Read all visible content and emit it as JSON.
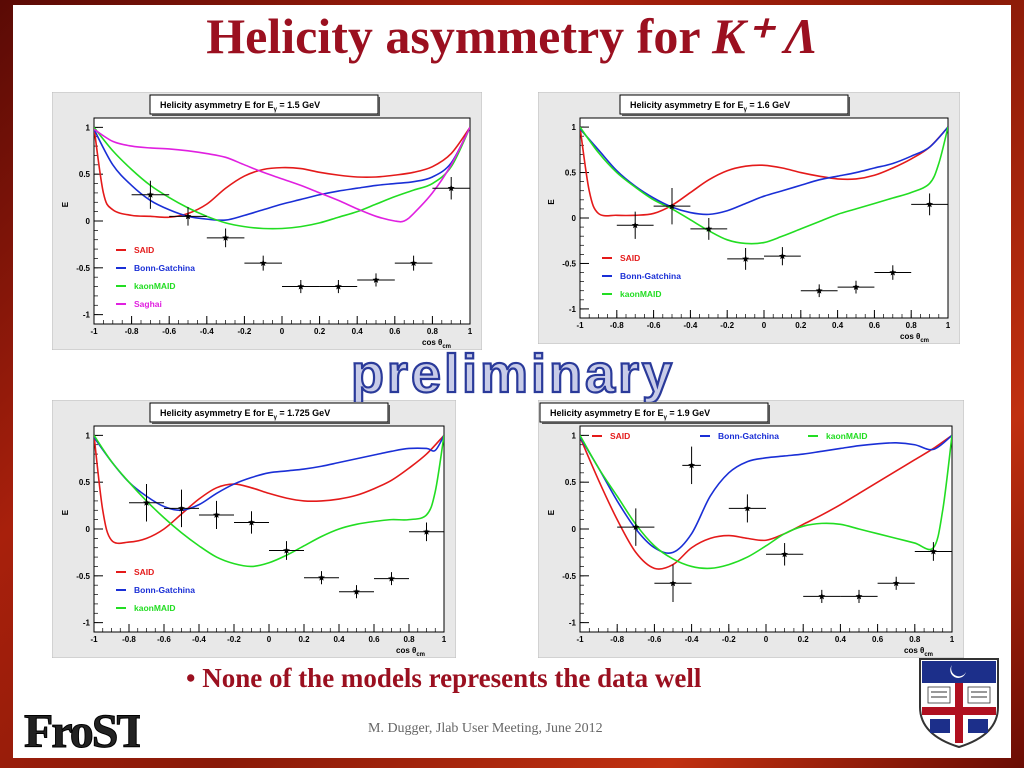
{
  "slide": {
    "title_prefix": "Helicity asymmetry for ",
    "title_particles": "K⁺ Λ",
    "watermark": "preliminary",
    "bullet": "• None of the models represents the data well",
    "footer": "M. Dugger, Jlab User Meeting, June 2012",
    "logo": "FroST"
  },
  "colors": {
    "SAID": "#e41a1a",
    "Bonn-Gatchina": "#1a2fd6",
    "kaonMAID": "#22dd22",
    "Saghai": "#e020e0",
    "title": "#9b1020"
  },
  "chart_data": [
    {
      "type": "line",
      "title": "Helicity asymmetry E   for E",
      "title_sub": "γ",
      "title_suffix": " = 1.5 GeV",
      "xlabel": "cos θ",
      "xlabel_sub": "cm",
      "ylabel": "E",
      "xlim": [
        -1,
        1
      ],
      "ylim": [
        -1.1,
        1.1
      ],
      "xticks": [
        "-1",
        "-0.8",
        "-0.6",
        "-0.4",
        "-0.2",
        "0",
        "0.2",
        "0.4",
        "0.6",
        "0.8",
        "1"
      ],
      "yticks": [
        "-1",
        "-0.5",
        "0",
        "0.5",
        "1"
      ],
      "legend_position": "bottom-left",
      "series": [
        {
          "name": "SAID",
          "color": "#e41a1a",
          "x": [
            -1,
            -0.95,
            -0.9,
            -0.8,
            -0.7,
            -0.6,
            -0.5,
            -0.4,
            -0.3,
            -0.2,
            -0.1,
            0,
            0.1,
            0.2,
            0.3,
            0.4,
            0.5,
            0.6,
            0.7,
            0.8,
            0.9,
            1
          ],
          "y": [
            1,
            0.3,
            0.12,
            0.06,
            0.05,
            0.04,
            0.08,
            0.18,
            0.35,
            0.48,
            0.55,
            0.57,
            0.56,
            0.52,
            0.49,
            0.47,
            0.47,
            0.49,
            0.52,
            0.58,
            0.72,
            1
          ]
        },
        {
          "name": "Bonn-Gatchina",
          "color": "#1a2fd6",
          "x": [
            -1,
            -0.9,
            -0.8,
            -0.7,
            -0.6,
            -0.5,
            -0.4,
            -0.3,
            -0.2,
            -0.1,
            0,
            0.1,
            0.2,
            0.3,
            0.4,
            0.5,
            0.6,
            0.7,
            0.8,
            0.9,
            1
          ],
          "y": [
            0.98,
            0.6,
            0.38,
            0.22,
            0.12,
            0.05,
            0.02,
            0.01,
            0.06,
            0.12,
            0.18,
            0.23,
            0.28,
            0.32,
            0.35,
            0.38,
            0.4,
            0.42,
            0.47,
            0.62,
            1
          ]
        },
        {
          "name": "kaonMAID",
          "color": "#22dd22",
          "x": [
            -1,
            -0.9,
            -0.8,
            -0.7,
            -0.6,
            -0.5,
            -0.4,
            -0.3,
            -0.2,
            -0.1,
            0,
            0.1,
            0.2,
            0.3,
            0.4,
            0.5,
            0.6,
            0.7,
            0.8,
            0.9,
            1
          ],
          "y": [
            1,
            0.75,
            0.55,
            0.38,
            0.25,
            0.14,
            0.05,
            -0.02,
            -0.06,
            -0.08,
            -0.08,
            -0.06,
            -0.02,
            0.04,
            0.1,
            0.18,
            0.26,
            0.33,
            0.4,
            0.58,
            1
          ]
        },
        {
          "name": "Saghai",
          "color": "#e020e0",
          "x": [
            -1,
            -0.9,
            -0.8,
            -0.7,
            -0.6,
            -0.5,
            -0.4,
            -0.3,
            -0.2,
            -0.1,
            0,
            0.1,
            0.2,
            0.3,
            0.4,
            0.5,
            0.6,
            0.65,
            0.7,
            0.8,
            0.9,
            1
          ],
          "y": [
            0.98,
            0.85,
            0.8,
            0.78,
            0.77,
            0.75,
            0.72,
            0.68,
            0.6,
            0.52,
            0.45,
            0.38,
            0.3,
            0.22,
            0.13,
            0.05,
            0.0,
            0.0,
            0.08,
            0.3,
            0.6,
            1
          ]
        }
      ],
      "data_points": {
        "x": [
          -0.7,
          -0.5,
          -0.3,
          -0.1,
          0.1,
          0.3,
          0.5,
          0.7,
          0.9
        ],
        "y": [
          0.28,
          0.05,
          -0.18,
          -0.45,
          -0.7,
          -0.7,
          -0.63,
          -0.45,
          0.35
        ],
        "xerr": [
          0.1,
          0.1,
          0.1,
          0.1,
          0.1,
          0.1,
          0.1,
          0.1,
          0.1
        ],
        "yerr": [
          0.15,
          0.1,
          0.1,
          0.08,
          0.07,
          0.07,
          0.07,
          0.08,
          0.12
        ]
      }
    },
    {
      "type": "line",
      "title": "Helicity asymmetry E  for E",
      "title_sub": "γ",
      "title_suffix": " = 1.6 GeV",
      "xlabel": "cos θ",
      "xlabel_sub": "cm",
      "ylabel": "E",
      "xlim": [
        -1,
        1
      ],
      "ylim": [
        -1.1,
        1.1
      ],
      "xticks": [
        "-1",
        "-0.8",
        "-0.6",
        "-0.4",
        "-0.2",
        "0",
        "0.2",
        "0.4",
        "0.6",
        "0.8",
        "1"
      ],
      "yticks": [
        "-1",
        "-0.5",
        "0",
        "0.5",
        "1"
      ],
      "legend_position": "bottom-left",
      "series": [
        {
          "name": "SAID",
          "color": "#e41a1a",
          "x": [
            -1,
            -0.95,
            -0.9,
            -0.8,
            -0.7,
            -0.6,
            -0.5,
            -0.4,
            -0.3,
            -0.2,
            -0.1,
            0,
            0.1,
            0.2,
            0.3,
            0.4,
            0.5,
            0.6,
            0.7,
            0.8,
            0.9,
            1
          ],
          "y": [
            1,
            0.3,
            0.05,
            0.03,
            0.03,
            0.05,
            0.14,
            0.28,
            0.42,
            0.52,
            0.57,
            0.58,
            0.55,
            0.5,
            0.46,
            0.43,
            0.43,
            0.47,
            0.55,
            0.65,
            0.78,
            1
          ]
        },
        {
          "name": "Bonn-Gatchina",
          "color": "#1a2fd6",
          "x": [
            -1,
            -0.9,
            -0.8,
            -0.7,
            -0.6,
            -0.5,
            -0.4,
            -0.3,
            -0.2,
            -0.1,
            0,
            0.1,
            0.2,
            0.3,
            0.4,
            0.5,
            0.6,
            0.7,
            0.8,
            0.9,
            1
          ],
          "y": [
            0.98,
            0.75,
            0.52,
            0.35,
            0.22,
            0.12,
            0.06,
            0.04,
            0.08,
            0.16,
            0.24,
            0.3,
            0.36,
            0.42,
            0.46,
            0.5,
            0.55,
            0.6,
            0.68,
            0.78,
            1
          ]
        },
        {
          "name": "kaonMAID",
          "color": "#22dd22",
          "x": [
            -1,
            -0.9,
            -0.8,
            -0.7,
            -0.6,
            -0.5,
            -0.4,
            -0.3,
            -0.2,
            -0.1,
            0,
            0.1,
            0.2,
            0.3,
            0.4,
            0.5,
            0.6,
            0.7,
            0.8,
            0.9,
            0.95,
            1
          ],
          "y": [
            1,
            0.72,
            0.5,
            0.34,
            0.2,
            0.1,
            -0.02,
            -0.14,
            -0.24,
            -0.28,
            -0.27,
            -0.2,
            -0.12,
            -0.04,
            0.04,
            0.1,
            0.16,
            0.22,
            0.28,
            0.38,
            0.6,
            1
          ]
        }
      ],
      "data_points": {
        "x": [
          -0.7,
          -0.5,
          -0.3,
          -0.1,
          0.1,
          0.3,
          0.5,
          0.7,
          0.9
        ],
        "y": [
          -0.08,
          0.13,
          -0.12,
          -0.45,
          -0.42,
          -0.8,
          -0.76,
          -0.6,
          0.15
        ],
        "xerr": [
          0.1,
          0.1,
          0.1,
          0.1,
          0.1,
          0.1,
          0.1,
          0.1,
          0.1
        ],
        "yerr": [
          0.15,
          0.2,
          0.12,
          0.12,
          0.1,
          0.07,
          0.07,
          0.08,
          0.12
        ]
      }
    },
    {
      "type": "line",
      "title": "Helicity asymmetry E  for E",
      "title_sub": "γ",
      "title_suffix": " = 1.725 GeV",
      "xlabel": "cos θ",
      "xlabel_sub": "cm",
      "ylabel": "E",
      "xlim": [
        -1,
        1
      ],
      "ylim": [
        -1.1,
        1.1
      ],
      "xticks": [
        "-1",
        "-0.8",
        "-0.6",
        "-0.4",
        "-0.2",
        "0",
        "0.2",
        "0.4",
        "0.6",
        "0.8",
        "1"
      ],
      "yticks": [
        "-1",
        "-0.5",
        "0",
        "0.5",
        "1"
      ],
      "legend_position": "bottom-left",
      "series": [
        {
          "name": "SAID",
          "color": "#e41a1a",
          "x": [
            -1,
            -0.95,
            -0.9,
            -0.8,
            -0.7,
            -0.6,
            -0.5,
            -0.4,
            -0.3,
            -0.2,
            -0.1,
            0,
            0.1,
            0.2,
            0.3,
            0.4,
            0.5,
            0.6,
            0.7,
            0.8,
            0.9,
            1
          ],
          "y": [
            1,
            0.2,
            -0.12,
            -0.14,
            -0.1,
            0.0,
            0.16,
            0.32,
            0.44,
            0.48,
            0.44,
            0.38,
            0.33,
            0.3,
            0.3,
            0.32,
            0.36,
            0.43,
            0.52,
            0.65,
            0.8,
            1
          ]
        },
        {
          "name": "Bonn-Gatchina",
          "color": "#1a2fd6",
          "x": [
            -1,
            -0.9,
            -0.8,
            -0.7,
            -0.6,
            -0.5,
            -0.4,
            -0.3,
            -0.2,
            -0.1,
            0,
            0.1,
            0.2,
            0.3,
            0.4,
            0.5,
            0.6,
            0.7,
            0.8,
            0.9,
            0.95,
            1
          ],
          "y": [
            0.98,
            0.72,
            0.5,
            0.35,
            0.24,
            0.2,
            0.26,
            0.38,
            0.48,
            0.55,
            0.6,
            0.62,
            0.64,
            0.67,
            0.71,
            0.75,
            0.79,
            0.83,
            0.86,
            0.86,
            0.84,
            1
          ]
        },
        {
          "name": "kaonMAID",
          "color": "#22dd22",
          "x": [
            -1,
            -0.9,
            -0.8,
            -0.7,
            -0.6,
            -0.5,
            -0.4,
            -0.3,
            -0.2,
            -0.1,
            0,
            0.1,
            0.2,
            0.3,
            0.4,
            0.5,
            0.6,
            0.7,
            0.8,
            0.9,
            0.95,
            1
          ],
          "y": [
            1,
            0.72,
            0.5,
            0.3,
            0.12,
            -0.04,
            -0.18,
            -0.3,
            -0.37,
            -0.4,
            -0.36,
            -0.28,
            -0.18,
            -0.08,
            0.0,
            0.05,
            0.08,
            0.1,
            0.1,
            0.15,
            0.4,
            1
          ]
        }
      ],
      "data_points": {
        "x": [
          -0.7,
          -0.5,
          -0.3,
          -0.1,
          0.1,
          0.3,
          0.5,
          0.7,
          0.9
        ],
        "y": [
          0.28,
          0.22,
          0.15,
          0.07,
          -0.23,
          -0.52,
          -0.67,
          -0.53,
          -0.03
        ],
        "xerr": [
          0.1,
          0.1,
          0.1,
          0.1,
          0.1,
          0.1,
          0.1,
          0.1,
          0.1
        ],
        "yerr": [
          0.2,
          0.2,
          0.15,
          0.12,
          0.1,
          0.07,
          0.07,
          0.07,
          0.1
        ]
      }
    },
    {
      "type": "line",
      "title": "Helicity asymmetry E  for E",
      "title_sub": "γ",
      "title_suffix": " = 1.9 GeV",
      "xlabel": "cos θ",
      "xlabel_sub": "cm",
      "ylabel": "E",
      "xlim": [
        -1,
        1
      ],
      "ylim": [
        -1.1,
        1.1
      ],
      "xticks": [
        "-1",
        "-0.8",
        "-0.6",
        "-0.4",
        "-0.2",
        "0",
        "0.2",
        "0.4",
        "0.6",
        "0.8",
        "1"
      ],
      "yticks": [
        "-1",
        "-0.5",
        "0",
        "0.5",
        "1"
      ],
      "legend_position": "top",
      "series": [
        {
          "name": "SAID",
          "color": "#e41a1a",
          "x": [
            -1,
            -0.9,
            -0.8,
            -0.7,
            -0.6,
            -0.5,
            -0.4,
            -0.3,
            -0.2,
            -0.1,
            0,
            0.1,
            0.2,
            0.3,
            0.4,
            0.5,
            0.6,
            0.7,
            0.8,
            0.9,
            1
          ],
          "y": [
            0.98,
            0.52,
            0.1,
            -0.25,
            -0.42,
            -0.38,
            -0.2,
            -0.1,
            -0.07,
            -0.1,
            -0.12,
            -0.05,
            0.05,
            0.15,
            0.26,
            0.38,
            0.5,
            0.62,
            0.74,
            0.86,
            1
          ]
        },
        {
          "name": "Bonn-Gatchina",
          "color": "#1a2fd6",
          "x": [
            -1,
            -0.9,
            -0.8,
            -0.7,
            -0.6,
            -0.5,
            -0.4,
            -0.3,
            -0.2,
            -0.1,
            0,
            0.1,
            0.2,
            0.3,
            0.4,
            0.5,
            0.6,
            0.7,
            0.8,
            0.9,
            1
          ],
          "y": [
            0.98,
            0.65,
            0.3,
            0.0,
            -0.2,
            -0.25,
            -0.05,
            0.35,
            0.6,
            0.72,
            0.76,
            0.78,
            0.8,
            0.83,
            0.86,
            0.89,
            0.91,
            0.92,
            0.9,
            0.85,
            1
          ]
        },
        {
          "name": "kaonMAID",
          "color": "#22dd22",
          "x": [
            -1,
            -0.9,
            -0.8,
            -0.7,
            -0.6,
            -0.5,
            -0.4,
            -0.3,
            -0.2,
            -0.1,
            0,
            0.1,
            0.2,
            0.3,
            0.4,
            0.5,
            0.6,
            0.7,
            0.8,
            0.9,
            0.95,
            1
          ],
          "y": [
            1,
            0.65,
            0.35,
            0.05,
            -0.18,
            -0.32,
            -0.4,
            -0.42,
            -0.38,
            -0.3,
            -0.18,
            -0.05,
            0.03,
            0.06,
            0.05,
            0.0,
            -0.05,
            -0.1,
            -0.15,
            -0.2,
            0.2,
            1
          ]
        }
      ],
      "data_points": {
        "x": [
          -0.7,
          -0.5,
          -0.4,
          -0.1,
          0.1,
          0.3,
          0.5,
          0.7,
          0.9
        ],
        "y": [
          0.02,
          -0.58,
          0.68,
          0.22,
          -0.27,
          -0.72,
          -0.72,
          -0.58,
          -0.24
        ],
        "xerr": [
          0.1,
          0.1,
          0.05,
          0.1,
          0.1,
          0.1,
          0.1,
          0.1,
          0.1
        ],
        "yerr": [
          0.2,
          0.2,
          0.2,
          0.15,
          0.12,
          0.07,
          0.07,
          0.07,
          0.1
        ]
      }
    }
  ]
}
